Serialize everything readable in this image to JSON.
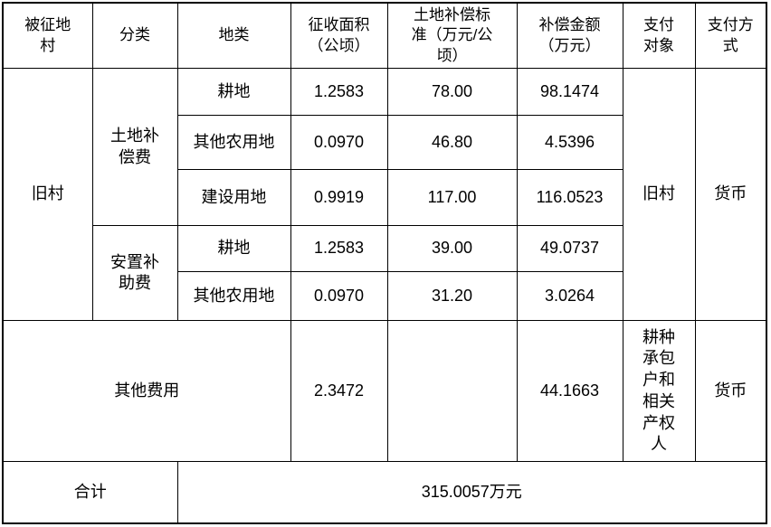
{
  "page": {
    "background_color": "#ffffff",
    "border_color": "#000000",
    "text_color": "#000000"
  },
  "table": {
    "headers": [
      "被征地\n村",
      "分类",
      "地类",
      "征收面积\n（公顷）",
      "土地补偿标\n准（万元/公\n顷）",
      "补偿金额\n（万元）",
      "支付\n对象",
      "支付方\n式"
    ],
    "village": "旧村",
    "sections": [
      {
        "category": "土地补\n偿费",
        "rows": [
          {
            "land_type": "耕地",
            "area": "1.2583",
            "standard": "78.00",
            "amount": "98.1474"
          },
          {
            "land_type": "其他农用地",
            "area": "0.0970",
            "standard": "46.80",
            "amount": "4.5396"
          },
          {
            "land_type": "建设用地",
            "area": "0.9919",
            "standard": "117.00",
            "amount": "116.0523"
          }
        ]
      },
      {
        "category": "安置补\n助费",
        "rows": [
          {
            "land_type": "耕地",
            "area": "1.2583",
            "standard": "39.00",
            "amount": "49.0737"
          },
          {
            "land_type": "其他农用地",
            "area": "0.0970",
            "standard": "31.20",
            "amount": "3.0264"
          }
        ]
      }
    ],
    "payee": "旧村",
    "payment_method": "货币",
    "other_fees": {
      "label": "其他费用",
      "area": "2.3472",
      "standard": "",
      "amount": "44.1663",
      "payee": "耕种\n承包\n户和\n相关\n产权\n人",
      "payment_method": "货币"
    },
    "total": {
      "label": "合计",
      "value": "315.0057万元"
    }
  }
}
